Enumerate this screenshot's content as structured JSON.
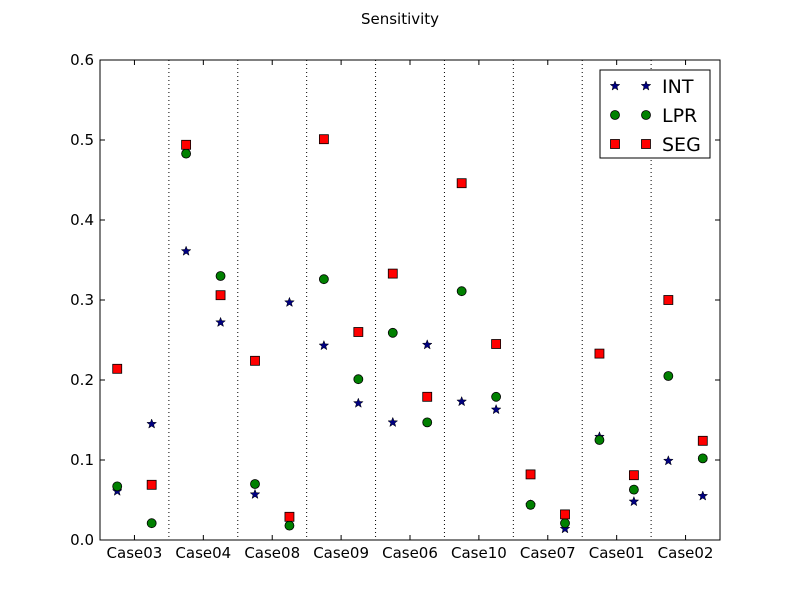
{
  "chart_data": {
    "type": "scatter",
    "title": "Sensitivity",
    "xlabel": "",
    "ylabel": "",
    "ylim": [
      0,
      0.6
    ],
    "yticks": [
      "0.0",
      "0.1",
      "0.2",
      "0.3",
      "0.4",
      "0.5",
      "0.6"
    ],
    "categories": [
      "Case03",
      "Case04",
      "Case08",
      "Case09",
      "Case06",
      "Case10",
      "Case07",
      "Case01",
      "Case02"
    ],
    "legend_position": "top-right",
    "points_per_category": 2,
    "series": [
      {
        "name": "INT",
        "marker": "star",
        "color": "#000080",
        "values": [
          0.061,
          0.145,
          0.361,
          0.272,
          0.057,
          0.297,
          0.243,
          0.171,
          0.147,
          0.244,
          0.173,
          0.163,
          0.044,
          0.014,
          0.129,
          0.048,
          0.099,
          0.055
        ]
      },
      {
        "name": "LPR",
        "marker": "circle",
        "color": "#008000",
        "values": [
          0.067,
          0.021,
          0.483,
          0.33,
          0.07,
          0.018,
          0.326,
          0.201,
          0.259,
          0.147,
          0.311,
          0.179,
          0.044,
          0.021,
          0.125,
          0.063,
          0.205,
          0.102
        ]
      },
      {
        "name": "SEG",
        "marker": "square",
        "color": "#ff0000",
        "values": [
          0.214,
          0.069,
          0.494,
          0.306,
          0.224,
          0.029,
          0.501,
          0.26,
          0.333,
          0.179,
          0.446,
          0.245,
          0.082,
          0.032,
          0.233,
          0.081,
          0.3,
          0.124
        ]
      }
    ]
  }
}
